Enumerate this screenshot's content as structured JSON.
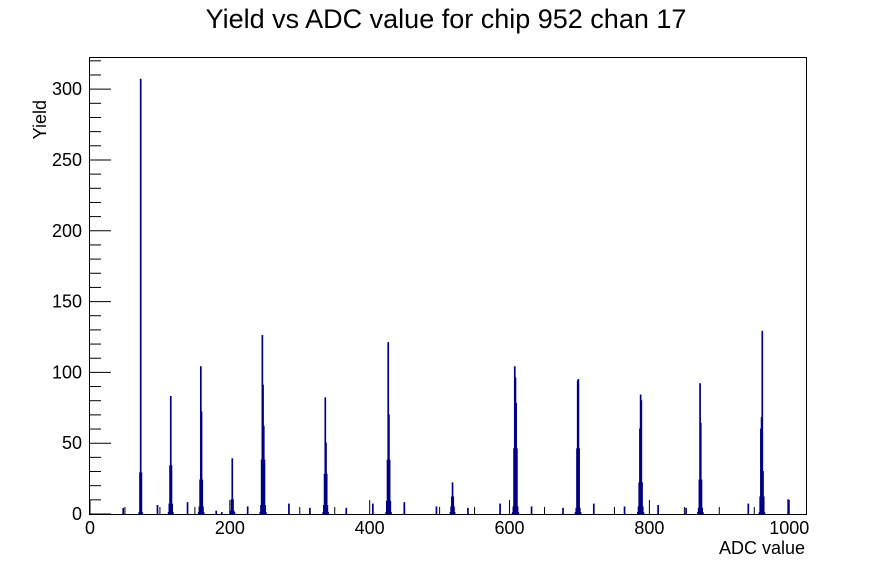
{
  "chart_data": {
    "type": "histogram",
    "title": "Yield vs ADC value for chip 952 chan 17",
    "xlabel": "ADC value",
    "ylabel": "Yield",
    "xlim": [
      0,
      1024
    ],
    "ylim": [
      0,
      322
    ],
    "x_ticks": [
      0,
      200,
      400,
      600,
      800,
      1000
    ],
    "x_tick_labels": [
      "0",
      "200",
      "400",
      "600",
      "800",
      "1000"
    ],
    "y_ticks": [
      0,
      50,
      100,
      150,
      200,
      250,
      300
    ],
    "y_tick_labels": [
      "0",
      "50",
      "100",
      "150",
      "200",
      "250",
      "300"
    ],
    "bin_width": 1,
    "line_color": "#000080",
    "grid": false,
    "legend": "none",
    "peaks": [
      {
        "x": 72,
        "values": [
          1,
          29,
          307,
          29,
          1
        ]
      },
      {
        "x": 115,
        "values": [
          1,
          7,
          34,
          83,
          34,
          7,
          1
        ]
      },
      {
        "x": 159,
        "values": [
          1,
          5,
          24,
          104,
          72,
          24,
          5,
          1
        ]
      },
      {
        "x": 203,
        "values": [
          1,
          2,
          10,
          39,
          10,
          2,
          1
        ]
      },
      {
        "x": 247,
        "values": [
          1,
          6,
          38,
          126,
          91,
          62,
          38,
          6,
          1
        ]
      },
      {
        "x": 337,
        "values": [
          1,
          6,
          28,
          82,
          50,
          28,
          6,
          1
        ]
      },
      {
        "x": 427,
        "values": [
          1,
          9,
          38,
          121,
          70,
          38,
          9,
          1
        ]
      },
      {
        "x": 518,
        "values": [
          1,
          5,
          12,
          22,
          12,
          5,
          1
        ]
      },
      {
        "x": 608,
        "values": [
          1,
          5,
          46,
          104,
          96,
          78,
          46,
          5,
          1
        ]
      },
      {
        "x": 698,
        "values": [
          1,
          4,
          46,
          94,
          95,
          46,
          4,
          1
        ]
      },
      {
        "x": 787,
        "values": [
          1,
          5,
          22,
          60,
          84,
          80,
          22,
          5,
          1
        ]
      },
      {
        "x": 873,
        "values": [
          1,
          4,
          24,
          92,
          64,
          24,
          4,
          1
        ]
      },
      {
        "x": 961,
        "values": [
          1,
          12,
          60,
          68,
          129,
          30,
          12,
          1
        ]
      }
    ],
    "isolated_bins": [
      {
        "x": 47,
        "value": 4
      },
      {
        "x": 96,
        "value": 6
      },
      {
        "x": 139,
        "value": 8
      },
      {
        "x": 180,
        "value": 2
      },
      {
        "x": 188,
        "value": 1
      },
      {
        "x": 225,
        "value": 5
      },
      {
        "x": 284,
        "value": 7
      },
      {
        "x": 314,
        "value": 4
      },
      {
        "x": 366,
        "value": 4
      },
      {
        "x": 404,
        "value": 7
      },
      {
        "x": 449,
        "value": 8
      },
      {
        "x": 495,
        "value": 5
      },
      {
        "x": 540,
        "value": 4
      },
      {
        "x": 586,
        "value": 7
      },
      {
        "x": 631,
        "value": 5
      },
      {
        "x": 676,
        "value": 4
      },
      {
        "x": 720,
        "value": 7
      },
      {
        "x": 764,
        "value": 5
      },
      {
        "x": 812,
        "value": 6
      },
      {
        "x": 852,
        "value": 4
      },
      {
        "x": 941,
        "value": 7
      },
      {
        "x": 998,
        "value": 10
      }
    ]
  }
}
